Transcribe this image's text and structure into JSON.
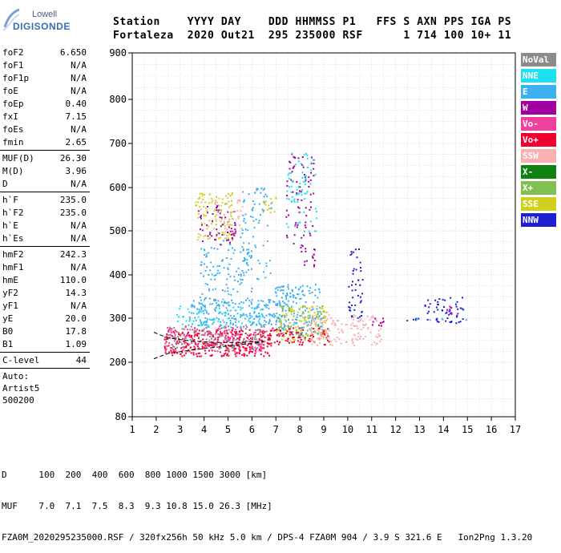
{
  "logo": {
    "line1": "Lowell",
    "line2": "DIGISONDE"
  },
  "header": {
    "line1": "Station    YYYY DAY    DDD HHMMSS P1   FFS S AXN PPS IGA PS",
    "line2": "Fortaleza  2020 Out21  295 235000 RSF      1 714 100 10+ 11"
  },
  "params_group1": [
    {
      "k": "foF2",
      "v": "6.650"
    },
    {
      "k": "foF1",
      "v": "N/A"
    },
    {
      "k": "foF1p",
      "v": "N/A"
    },
    {
      "k": "foE",
      "v": "N/A"
    },
    {
      "k": "foEp",
      "v": "0.40"
    },
    {
      "k": "fxI",
      "v": "7.15"
    },
    {
      "k": "foEs",
      "v": "N/A"
    },
    {
      "k": "fmin",
      "v": "2.65"
    }
  ],
  "params_group2": [
    {
      "k": "MUF(D)",
      "v": "26.30"
    },
    {
      "k": "M(D)",
      "v": "3.96"
    },
    {
      "k": "D",
      "v": "N/A"
    }
  ],
  "params_group3": [
    {
      "k": "h`F",
      "v": "235.0"
    },
    {
      "k": "h`F2",
      "v": "235.0"
    },
    {
      "k": "h`E",
      "v": "N/A"
    },
    {
      "k": "h`Es",
      "v": "N/A"
    }
  ],
  "params_group4": [
    {
      "k": "hmF2",
      "v": "242.3"
    },
    {
      "k": "hmF1",
      "v": "N/A"
    },
    {
      "k": "hmE",
      "v": "110.0"
    },
    {
      "k": "yF2",
      "v": "14.3"
    },
    {
      "k": "yF1",
      "v": "N/A"
    },
    {
      "k": "yE",
      "v": "20.0"
    },
    {
      "k": "B0",
      "v": "17.8"
    },
    {
      "k": "B1",
      "v": "1.09"
    }
  ],
  "params_group5": [
    {
      "k": "C-level",
      "v": "44"
    }
  ],
  "autoscaling": [
    "Auto:",
    "Artist5",
    "500200"
  ],
  "legend": [
    {
      "label": "NoVal",
      "color": "#8c8c8c"
    },
    {
      "label": "NNE",
      "color": "#1ee0f0"
    },
    {
      "label": "E",
      "color": "#3cb0f0"
    },
    {
      "label": "W",
      "color": "#a000a0"
    },
    {
      "label": "Vo-",
      "color": "#f040a0"
    },
    {
      "label": "Vo+",
      "color": "#f00030"
    },
    {
      "label": "SSW",
      "color": "#f8b0b0"
    },
    {
      "label": "X-",
      "color": "#108010"
    },
    {
      "label": "X+",
      "color": "#80c050"
    },
    {
      "label": "SSE",
      "color": "#d0d020"
    },
    {
      "label": "NNW",
      "color": "#2020d0"
    }
  ],
  "footer": {
    "line1": "D      100  200  400  600  800 1000 1500 3000 [km]",
    "line2": "MUF    7.0  7.1  7.5  8.3  9.3 10.8 15.0 26.3 [MHz]",
    "line3": "FZA0M_2020295235000.RSF / 320fx256h 50 kHz 5.0 km / DPS-4 FZA0M 904 / 3.9 S 321.6 E   Ion2Png 1.3.20"
  },
  "chart_data": {
    "type": "scatter",
    "title": "",
    "xlabel": "",
    "ylabel": "",
    "xlim": [
      1,
      17
    ],
    "ylim": [
      80,
      900
    ],
    "x_ticks": [
      1,
      2,
      3,
      4,
      5,
      6,
      7,
      8,
      9,
      10,
      11,
      12,
      13,
      14,
      15,
      16,
      17
    ],
    "y_ticks": [
      80,
      200,
      300,
      400,
      500,
      600,
      700,
      800,
      900
    ],
    "grid": true,
    "legend_position": "right",
    "trace_x": [
      1.9,
      2.5,
      3.5,
      4.5,
      5.5,
      6.5
    ],
    "trace_upper": [
      268,
      255,
      248,
      245,
      245,
      248
    ],
    "trace_lower": [
      208,
      220,
      228,
      234,
      240,
      246
    ],
    "clusters": [
      {
        "series": "Vo+",
        "x": [
          2.3,
          6.8
        ],
        "y": [
          215,
          275
        ],
        "density": 1.0
      },
      {
        "series": "Vo-",
        "x": [
          2.3,
          6.6
        ],
        "y": [
          225,
          285
        ],
        "density": 0.6
      },
      {
        "series": "NoVal",
        "x": [
          2.4,
          6.5
        ],
        "y": [
          230,
          285
        ],
        "density": 0.4
      },
      {
        "series": "E",
        "x": [
          3.3,
          7.4
        ],
        "y": [
          285,
          345
        ],
        "density": 0.8
      },
      {
        "series": "NNE",
        "x": [
          2.8,
          6.5
        ],
        "y": [
          280,
          330
        ],
        "density": 0.3
      },
      {
        "series": "E",
        "x": [
          3.8,
          6.0
        ],
        "y": [
          330,
          480
        ],
        "density": 0.3
      },
      {
        "series": "E",
        "x": [
          5.5,
          6.8
        ],
        "y": [
          390,
          600
        ],
        "density": 0.25
      },
      {
        "series": "SSE",
        "x": [
          3.6,
          5.2
        ],
        "y": [
          480,
          590
        ],
        "density": 0.5
      },
      {
        "series": "W",
        "x": [
          3.7,
          5.3
        ],
        "y": [
          470,
          560
        ],
        "density": 0.35
      },
      {
        "series": "SSW",
        "x": [
          4.4,
          5.6
        ],
        "y": [
          490,
          580
        ],
        "density": 0.3
      },
      {
        "series": "SSE",
        "x": [
          6.4,
          7.0
        ],
        "y": [
          540,
          580
        ],
        "density": 0.5
      },
      {
        "series": "W",
        "x": [
          7.4,
          8.6
        ],
        "y": [
          420,
          680
        ],
        "density": 0.25
      },
      {
        "series": "NNE",
        "x": [
          7.4,
          8.7
        ],
        "y": [
          500,
          680
        ],
        "density": 0.25
      },
      {
        "series": "E",
        "x": [
          6.9,
          8.9
        ],
        "y": [
          260,
          380
        ],
        "density": 0.6
      },
      {
        "series": "SSE",
        "x": [
          7.0,
          9.1
        ],
        "y": [
          250,
          330
        ],
        "density": 0.6
      },
      {
        "series": "X+",
        "x": [
          7.0,
          9.1
        ],
        "y": [
          260,
          330
        ],
        "density": 0.3
      },
      {
        "series": "Vo+",
        "x": [
          6.6,
          9.2
        ],
        "y": [
          240,
          280
        ],
        "density": 0.7
      },
      {
        "series": "SSW",
        "x": [
          8.4,
          11.4
        ],
        "y": [
          240,
          310
        ],
        "density": 0.6
      },
      {
        "series": "NNW",
        "x": [
          10.0,
          10.6
        ],
        "y": [
          300,
          460
        ],
        "density": 0.4
      },
      {
        "series": "W",
        "x": [
          11.0,
          11.5
        ],
        "y": [
          280,
          310
        ],
        "density": 0.5
      },
      {
        "series": "NNW",
        "x": [
          12.3,
          13.0
        ],
        "y": [
          295,
          305
        ],
        "density": 0.6
      },
      {
        "series": "NNW",
        "x": [
          13.2,
          13.8
        ],
        "y": [
          290,
          350
        ],
        "density": 0.5
      },
      {
        "series": "NNW",
        "x": [
          13.9,
          14.8
        ],
        "y": [
          290,
          350
        ],
        "density": 0.5
      },
      {
        "series": "W",
        "x": [
          14.0,
          14.6
        ],
        "y": [
          300,
          340
        ],
        "density": 0.25
      },
      {
        "series": "E",
        "x": [
          12.3,
          15.3
        ],
        "y": [
          297,
          303
        ],
        "density": 0.3
      }
    ]
  }
}
